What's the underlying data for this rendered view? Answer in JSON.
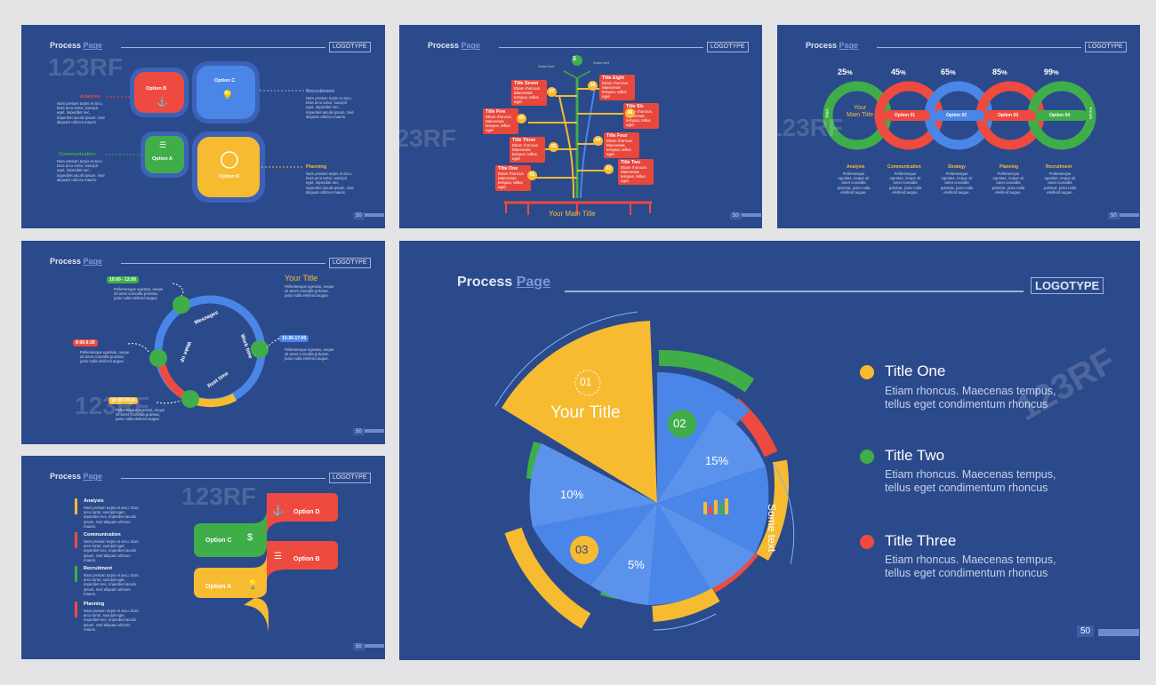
{
  "common": {
    "header_a": "Process",
    "header_b": "Page",
    "logotype": "LOGOTYPE",
    "lorem_short": "Nam pretium turpis et arcu. Duis arcu tortor, suscipit eget, imperdiet nec, imperdiet iaculis ipsum. Sed aliquam ultrices mauris.",
    "lorem_pell": "Pellentesque egestas, neque sit amet convallis pulvinar, justo nulla eleifend augue.",
    "small_page": "50",
    "watermark": "123RF"
  },
  "slide1": {
    "options": [
      "Option B",
      "Option C",
      "Option A",
      "Option D"
    ],
    "labels": [
      "Analysis",
      "Recruitment",
      "Communication",
      "Planning"
    ]
  },
  "slide2": {
    "main_title": "Your Main Title",
    "top_labels": [
      "Some text",
      "Some text"
    ],
    "titles": [
      "Title Seven",
      "Title Eight",
      "Title Five",
      "Title Six",
      "Title Three",
      "Title Four",
      "Title One",
      "Title Two"
    ],
    "nodes": [
      "07",
      "08",
      "05",
      "06",
      "03",
      "04",
      "01",
      "02"
    ],
    "box_text": "Etiam rhoncus. Maecenas tempus, tellus eget"
  },
  "slide3": {
    "main_title": "Your Main Title",
    "start": "Start",
    "finish": "Finish",
    "percents": [
      "25",
      "45",
      "65",
      "85",
      "99"
    ],
    "options": [
      "Option 01",
      "Option 02",
      "Option 03",
      "Option 04"
    ],
    "labels": [
      "Analysis",
      "Communication",
      "Strategy",
      "Planning",
      "Recruitment"
    ],
    "desc": "Pellentesque egestas, neque sit amet convallis pulvinar, justo nulla eleifend augue."
  },
  "slide4": {
    "your_title": "Your Title",
    "times": [
      "10:00 - 12:00",
      "8:00-9:30",
      "13:30-17:00",
      "18:00-19:30"
    ],
    "arc_labels": [
      "Messages",
      "Work time",
      "Wake up",
      "Rest time"
    ]
  },
  "slide5": {
    "labels": [
      "Analysis",
      "Communication",
      "Recruitment",
      "Planning"
    ],
    "options": [
      "Option D",
      "Option C",
      "Option B",
      "Option A"
    ]
  },
  "slide6": {
    "page_number": "50",
    "some_text": "Some text",
    "your_title": "Your Title",
    "labels": [
      "01",
      "02",
      "03"
    ],
    "percents": [
      "15%",
      "10%",
      "5%"
    ],
    "legend": [
      {
        "title": "Title One",
        "line1": "Etiam rhoncus. Maecenas tempus,",
        "line2": "tellus eget condimentum rhoncus",
        "color": "#f7bb31"
      },
      {
        "title": "Title Two",
        "line1": "Etiam rhoncus. Maecenas tempus,",
        "line2": "tellus eget condimentum rhoncus",
        "color": "#3fae49"
      },
      {
        "title": "Title Three",
        "line1": "Etiam rhoncus. Maecenas tempus,",
        "line2": "tellus eget condimentum rhoncus",
        "color": "#ef4a3f"
      }
    ]
  },
  "colors": {
    "bg": "#2b4a8b",
    "yellow": "#f7bb31",
    "red": "#ef4a3f",
    "green": "#3fae49",
    "blue": "#4a86e8"
  }
}
